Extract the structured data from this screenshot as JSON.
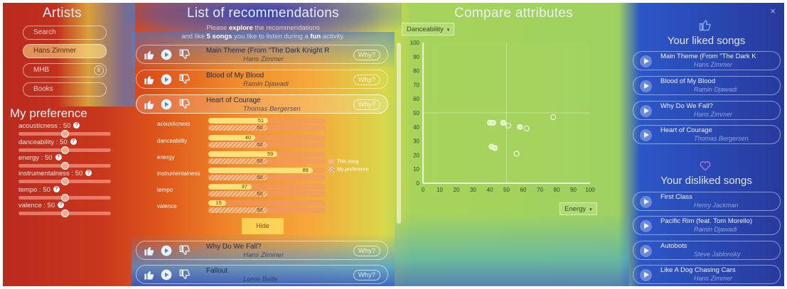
{
  "artists": {
    "title": "Artists",
    "search_placeholder": "Search",
    "items": [
      {
        "label": "Hans Zimmer",
        "selected": true
      },
      {
        "label": "MHB",
        "badge": "8"
      },
      {
        "label": "Books"
      }
    ]
  },
  "preference": {
    "title": "My preference",
    "sliders": [
      {
        "label": "acousticness : 50",
        "value": 50
      },
      {
        "label": "danceability : 50",
        "value": 50
      },
      {
        "label": "energy : 50",
        "value": 50
      },
      {
        "label": "instrumentalness : 50",
        "value": 50
      },
      {
        "label": "tempo : 50",
        "value": 50
      },
      {
        "label": "valence : 50",
        "value": 50
      }
    ]
  },
  "recommendations": {
    "title": "List of recommendations",
    "subtitle_1a": "Please ",
    "subtitle_1b": "explore",
    "subtitle_1c": " the recommendations",
    "subtitle_2a": "and like ",
    "subtitle_2b": "5 songs",
    "subtitle_2c": " you like to listen during a ",
    "subtitle_2d": "fun",
    "subtitle_2e": " activity.",
    "why_label": "Why?",
    "hide_label": "Hide",
    "legend_song": "This song",
    "legend_pref": "My preference",
    "items": [
      {
        "title": "Main Theme (From \"The Dark Knight R",
        "artist": "Hans Zimmer"
      },
      {
        "title": "Blood of My Blood",
        "artist": "Ramin Djawadi"
      },
      {
        "title": "Heart of Courage",
        "artist": "Thomas Bergersen"
      },
      {
        "title": "Why Do We Fall?",
        "artist": "Hans Zimmer"
      },
      {
        "title": "Fallout",
        "artist": "Lorne Balfe"
      }
    ],
    "attributes": [
      {
        "name": "acousticness",
        "song": 51,
        "pref": 50
      },
      {
        "name": "danceability",
        "song": 40,
        "pref": 50
      },
      {
        "name": "energy",
        "song": 59,
        "pref": 50
      },
      {
        "name": "instrumentalness",
        "song": 89,
        "pref": 50
      },
      {
        "name": "tempo",
        "song": 37,
        "pref": 50
      },
      {
        "name": "valence",
        "song": 15,
        "pref": 50
      }
    ]
  },
  "compare": {
    "title": "Compare attributes",
    "y_select": "Danceability",
    "x_select": "Energy"
  },
  "chart_data": {
    "type": "scatter",
    "x": [
      40,
      42,
      48,
      51,
      58,
      62,
      78,
      41,
      43,
      56
    ],
    "y": [
      43,
      43,
      43,
      41,
      40,
      39,
      47,
      26,
      25,
      21
    ],
    "xlim": [
      0,
      100
    ],
    "ylim": [
      0,
      100
    ],
    "xticks": [
      "0",
      "10",
      "20",
      "30",
      "40",
      "50",
      "60",
      "70",
      "80",
      "90",
      "100"
    ],
    "yticks": [
      "0",
      "10",
      "20",
      "30",
      "40",
      "50",
      "60",
      "70",
      "80",
      "90",
      "100"
    ]
  },
  "liked": {
    "title": "Your liked songs",
    "items": [
      {
        "title": "Main Theme (From \"The Dark K",
        "artist": "Hans Zimmer"
      },
      {
        "title": "Blood of My Blood",
        "artist": "Ramin Djawadi"
      },
      {
        "title": "Why Do We Fall?",
        "artist": "Hans Zimmer"
      },
      {
        "title": "Heart of Courage",
        "artist": "Thomas Bergersen"
      }
    ]
  },
  "disliked": {
    "title": "Your disliked songs",
    "items": [
      {
        "title": "First Class",
        "artist": "Henry Jackman"
      },
      {
        "title": "Pacific Rim (feat. Tom Morello)",
        "artist": "Ramin Djawadi"
      },
      {
        "title": "Autobots",
        "artist": "Steve Jablonsky"
      },
      {
        "title": "Like A Dog Chasing Cars",
        "artist": "Hans Zimmer"
      }
    ]
  },
  "close_glyph": "×"
}
